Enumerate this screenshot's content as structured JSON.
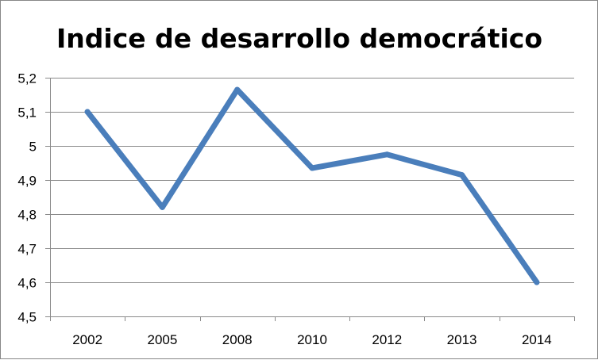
{
  "chart_data": {
    "type": "line",
    "title": "Indice de desarrollo democrático",
    "xlabel": "",
    "ylabel": "",
    "categories": [
      "2002",
      "2005",
      "2008",
      "2010",
      "2012",
      "2013",
      "2014"
    ],
    "series": [
      {
        "values": [
          5.1,
          4.82,
          5.165,
          4.935,
          4.975,
          4.915,
          4.6
        ],
        "color": "#4a7ebb"
      }
    ],
    "ylim": [
      4.5,
      5.2
    ],
    "yticks": [
      4.5,
      4.6,
      4.7,
      4.8,
      4.9,
      5.0,
      5.1,
      5.2
    ],
    "ytick_labels": [
      "4,5",
      "4,6",
      "4,7",
      "4,8",
      "4,9",
      "5",
      "5,1",
      "5,2"
    ],
    "grid": true,
    "legend": "none"
  }
}
